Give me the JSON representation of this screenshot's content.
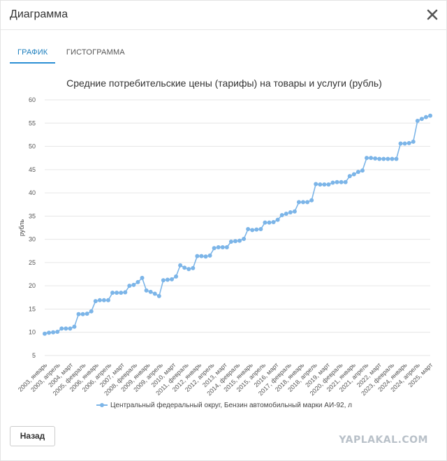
{
  "dialog": {
    "title": "Диаграмма",
    "close_icon": "close-icon",
    "back_label": "Назад"
  },
  "tabs": [
    {
      "label": "ГРАФИК",
      "active": true
    },
    {
      "label": "ГИСТОГРАММА",
      "active": false
    }
  ],
  "watermark": "YAPLAKAL.COM",
  "colors": {
    "series": "#7cb5e8",
    "accent": "#2b8fd4",
    "grid": "#e6e6e6"
  },
  "chart_data": {
    "type": "line",
    "title": "Средние потребительские цены (тарифы) на товары и услуги (рубль)",
    "ylabel": "рубль",
    "xlabel": "",
    "ylim": [
      5,
      60
    ],
    "yticks": [
      5,
      10,
      15,
      20,
      25,
      30,
      35,
      40,
      45,
      50,
      55,
      60
    ],
    "grid": true,
    "legend_position": "bottom",
    "x_tick_labels": [
      "2003, январь",
      "2003, апрель",
      "2004, март",
      "2005, февраль",
      "2006, январь",
      "2006, апрель",
      "2007, март",
      "2008, февраль",
      "2009, январь",
      "2009, апрель",
      "2010, март",
      "2011, февраль",
      "2012, январь",
      "2012, апрель",
      "2013, март",
      "2014, февраль",
      "2015, январь",
      "2015, апрель",
      "2016, март",
      "2017, февраль",
      "2018, январь",
      "2018, апрель",
      "2019, март",
      "2020, февраль",
      "2021, январь",
      "2021, апрель",
      "2022, март",
      "2023, февраль",
      "2024, январь",
      "2024, апрель",
      "2025, март"
    ],
    "series": [
      {
        "name": "Центральный федеральный округ, Бензин автомобильный марки АИ-92, л",
        "values": [
          9.7,
          9.9,
          10.0,
          10.1,
          10.8,
          10.8,
          10.8,
          11.2,
          13.9,
          13.9,
          14.0,
          14.5,
          16.7,
          16.9,
          16.9,
          16.9,
          18.5,
          18.5,
          18.5,
          18.6,
          20.0,
          20.2,
          20.8,
          21.7,
          19.0,
          18.7,
          18.3,
          17.8,
          21.2,
          21.3,
          21.4,
          22.0,
          24.4,
          23.9,
          23.6,
          23.8,
          26.4,
          26.4,
          26.3,
          26.5,
          28.1,
          28.3,
          28.3,
          28.3,
          29.5,
          29.6,
          29.7,
          30.1,
          32.2,
          32.0,
          32.1,
          32.2,
          33.6,
          33.6,
          33.7,
          34.2,
          35.2,
          35.5,
          35.8,
          36.0,
          38.0,
          38.0,
          38.0,
          38.4,
          41.9,
          41.8,
          41.8,
          41.8,
          42.2,
          42.3,
          42.3,
          42.3,
          43.6,
          44.0,
          44.5,
          44.8,
          47.5,
          47.5,
          47.4,
          47.3,
          47.3,
          47.3,
          47.3,
          47.3,
          50.6,
          50.6,
          50.7,
          51.0,
          55.5,
          55.9,
          56.3,
          56.6
        ]
      }
    ]
  }
}
